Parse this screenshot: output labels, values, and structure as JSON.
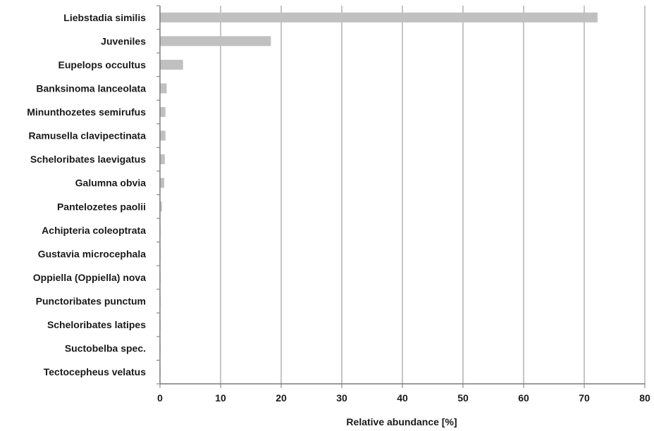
{
  "chart_data": {
    "type": "bar",
    "orientation": "horizontal",
    "categories": [
      "Liebstadia similis",
      "Juveniles",
      "Eupelops occultus",
      "Banksinoma lanceolata",
      "Minunthozetes semirufus",
      "Ramusella clavipectinata",
      "Scheloribates laevigatus",
      "Galumna obvia",
      "Pantelozetes paolii",
      "Achipteria coleoptrata",
      "Gustavia microcephala",
      "Oppiella (Oppiella) nova",
      "Punctoribates punctum",
      "Scheloribates latipes",
      "Suctobelba spec.",
      "Tectocepheus velatus"
    ],
    "values": [
      72.2,
      18.3,
      3.8,
      1.1,
      0.9,
      0.9,
      0.8,
      0.7,
      0.3,
      0.1,
      0.1,
      0.1,
      0.1,
      0.1,
      0.1,
      0.1
    ],
    "xlabel": "Relative abundance [%]",
    "xlim": [
      0,
      80
    ],
    "xticks": [
      0,
      10,
      20,
      30,
      40,
      50,
      60,
      70,
      80
    ],
    "grid": "vertical",
    "bar_color": "#c0c0c0",
    "grid_color": "#8c8c8c",
    "axis_color": "#7a7a7a",
    "text_color": "#1a1a1a"
  }
}
